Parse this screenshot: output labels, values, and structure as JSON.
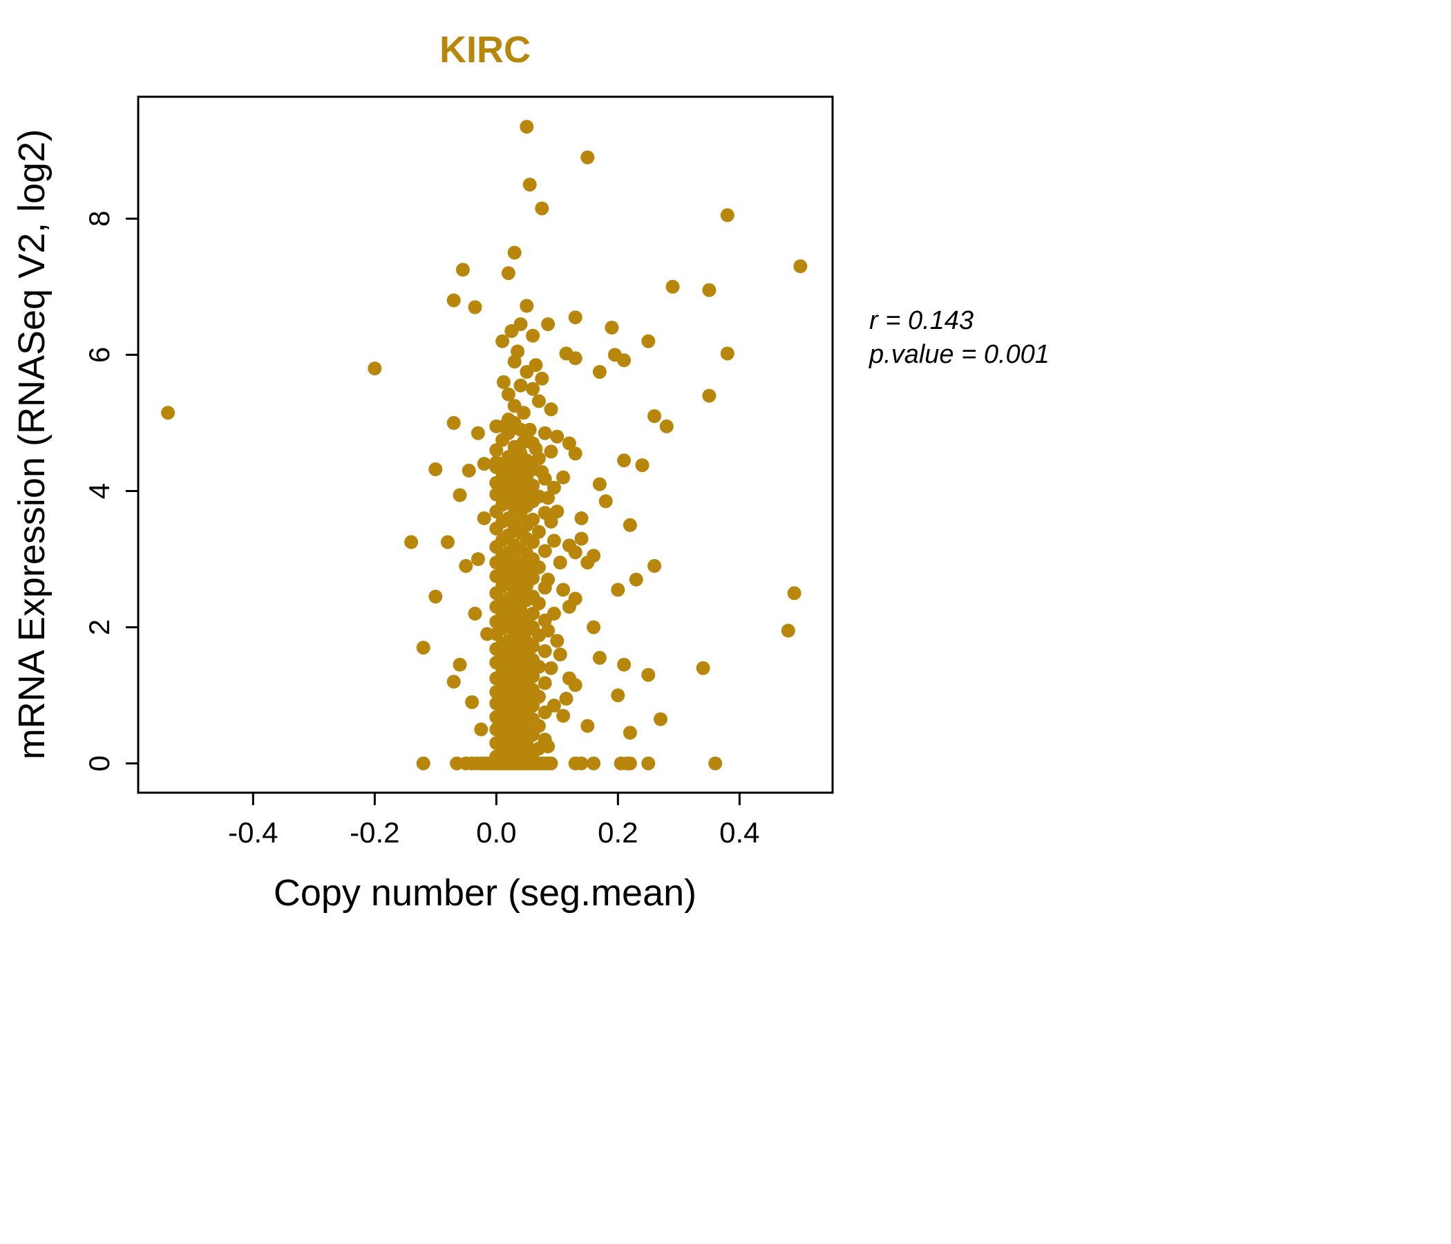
{
  "chart_data": {
    "type": "scatter",
    "title": "KIRC",
    "title_color": "#B8860B",
    "xlabel": "Copy number (seg.mean)",
    "ylabel": "mRNA Expression (RNASeq V2, log2)",
    "point_color": "#B8860B",
    "grid": false,
    "x_axis": {
      "range": [
        -0.589,
        0.553
      ],
      "ticks": [
        -0.4,
        -0.2,
        0,
        0.2,
        0.4
      ],
      "tick_labels": [
        "-0.4",
        "-0.2",
        "0.0",
        "0.2",
        "0.4"
      ]
    },
    "y_axis": {
      "range": [
        -0.43,
        9.79
      ],
      "ticks": [
        0,
        2,
        4,
        6,
        8
      ],
      "tick_labels": [
        "0",
        "2",
        "4",
        "6",
        "8"
      ]
    },
    "annotation": {
      "line1": "r = 0.143",
      "line2": "p.value = 0.001"
    },
    "points": [
      [
        0.05,
        9.35
      ],
      [
        0.15,
        8.9
      ],
      [
        0.055,
        8.5
      ],
      [
        0.075,
        8.15
      ],
      [
        0.38,
        8.05
      ],
      [
        0.03,
        7.5
      ],
      [
        0.5,
        7.3
      ],
      [
        -0.055,
        7.25
      ],
      [
        0.02,
        7.2
      ],
      [
        0.29,
        7.0
      ],
      [
        0.35,
        6.95
      ],
      [
        -0.07,
        6.8
      ],
      [
        -0.035,
        6.7
      ],
      [
        0.05,
        6.72
      ],
      [
        0.085,
        6.45
      ],
      [
        0.13,
        6.55
      ],
      [
        0.19,
        6.4
      ],
      [
        0.01,
        6.2
      ],
      [
        0.25,
        6.2
      ],
      [
        0.035,
        6.05
      ],
      [
        0.115,
        6.02
      ],
      [
        0.13,
        5.95
      ],
      [
        0.195,
        6.0
      ],
      [
        0.21,
        5.92
      ],
      [
        0.38,
        6.02
      ],
      [
        0.03,
        5.9
      ],
      [
        -0.2,
        5.8
      ],
      [
        0.17,
        5.75
      ],
      [
        0.012,
        5.6
      ],
      [
        0.04,
        5.55
      ],
      [
        0.06,
        5.5
      ],
      [
        0.02,
        5.42
      ],
      [
        0.35,
        5.4
      ],
      [
        0.07,
        5.32
      ],
      [
        0.03,
        5.25
      ],
      [
        0.045,
        5.15
      ],
      [
        -0.54,
        5.15
      ],
      [
        0.02,
        5.05
      ],
      [
        0.26,
        5.1
      ],
      [
        -0.07,
        5.0
      ],
      [
        0.012,
        4.95
      ],
      [
        0.055,
        4.9
      ],
      [
        0.08,
        4.85
      ],
      [
        0.1,
        4.8
      ],
      [
        0.28,
        4.95
      ],
      [
        0.045,
        4.72
      ],
      [
        0.12,
        4.7
      ],
      [
        0.065,
        4.62
      ],
      [
        0.09,
        4.58
      ],
      [
        0.025,
        4.52
      ],
      [
        0.13,
        4.55
      ],
      [
        0.0,
        4.42
      ],
      [
        0.21,
        4.45
      ],
      [
        0.24,
        4.38
      ],
      [
        -0.02,
        4.4
      ],
      [
        -0.1,
        4.32
      ],
      [
        0.075,
        4.28
      ],
      [
        0.11,
        4.2
      ],
      [
        0.17,
        4.1
      ],
      [
        -0.06,
        3.94
      ],
      [
        0.085,
        3.9
      ],
      [
        0.18,
        3.85
      ],
      [
        0.1,
        3.7
      ],
      [
        0.14,
        3.6
      ],
      [
        0.22,
        3.5
      ],
      [
        -0.14,
        3.25
      ],
      [
        -0.08,
        3.25
      ],
      [
        0.095,
        3.27
      ],
      [
        0.12,
        3.2
      ],
      [
        0.13,
        3.1
      ],
      [
        0.105,
        2.95
      ],
      [
        0.15,
        2.95
      ],
      [
        0.23,
        2.7
      ],
      [
        0.26,
        2.9
      ],
      [
        0.085,
        2.7
      ],
      [
        0.11,
        2.55
      ],
      [
        0.49,
        2.5
      ],
      [
        -0.1,
        2.45
      ],
      [
        0.12,
        2.3
      ],
      [
        0.095,
        2.2
      ],
      [
        0.16,
        2.0
      ],
      [
        0.48,
        1.95
      ],
      [
        0.085,
        1.95
      ],
      [
        0.1,
        1.8
      ],
      [
        -0.12,
        1.7
      ],
      [
        0.17,
        1.55
      ],
      [
        0.21,
        1.45
      ],
      [
        0.09,
        1.4
      ],
      [
        0.34,
        1.4
      ],
      [
        0.25,
        1.3
      ],
      [
        0.12,
        1.25
      ],
      [
        -0.07,
        1.2
      ],
      [
        0.2,
        1.0
      ],
      [
        0.095,
        0.85
      ],
      [
        0.11,
        0.7
      ],
      [
        0.27,
        0.65
      ],
      [
        0.15,
        0.55
      ],
      [
        0.22,
        0.45
      ],
      [
        0.085,
        0.25
      ],
      [
        0.13,
        2.42
      ],
      [
        0.14,
        3.3
      ],
      [
        0.09,
        3.55
      ],
      [
        0.095,
        4.05
      ],
      [
        0.105,
        1.6
      ],
      [
        0.13,
        1.15
      ],
      [
        0.115,
        0.95
      ],
      [
        0.16,
        3.05
      ],
      [
        0.2,
        2.55
      ],
      [
        0.09,
        5.2
      ],
      [
        0.065,
        5.85
      ],
      [
        0.075,
        5.65
      ],
      [
        0.05,
        5.75
      ],
      [
        0.025,
        6.35
      ],
      [
        0.06,
        6.28
      ],
      [
        0.04,
        6.45
      ],
      [
        -0.03,
        4.85
      ],
      [
        -0.045,
        4.3
      ],
      [
        -0.02,
        3.6
      ],
      [
        -0.05,
        2.9
      ],
      [
        -0.035,
        2.2
      ],
      [
        -0.06,
        1.45
      ],
      [
        -0.04,
        0.9
      ],
      [
        -0.025,
        0.5
      ],
      [
        -0.015,
        1.9
      ],
      [
        -0.03,
        3.0
      ],
      [
        0.02,
        0.05
      ],
      [
        0.05,
        0.06
      ],
      [
        0.0,
        0.1
      ],
      [
        0.03,
        0.12
      ],
      [
        0.06,
        0.15
      ],
      [
        0.01,
        0.18
      ],
      [
        0.04,
        0.2
      ],
      [
        0.07,
        0.22
      ],
      [
        0.02,
        0.25
      ],
      [
        0.05,
        0.28
      ],
      [
        0.0,
        0.3
      ],
      [
        0.03,
        0.32
      ],
      [
        0.08,
        0.35
      ],
      [
        0.01,
        0.38
      ],
      [
        0.04,
        0.4
      ],
      [
        0.06,
        0.42
      ],
      [
        0.02,
        0.45
      ],
      [
        0.05,
        0.48
      ],
      [
        0.0,
        0.5
      ],
      [
        0.03,
        0.52
      ],
      [
        0.07,
        0.55
      ],
      [
        0.01,
        0.58
      ],
      [
        0.04,
        0.6
      ],
      [
        0.02,
        0.62
      ],
      [
        0.06,
        0.65
      ],
      [
        0.0,
        0.68
      ],
      [
        0.03,
        0.7
      ],
      [
        0.05,
        0.72
      ],
      [
        0.08,
        0.75
      ],
      [
        0.01,
        0.78
      ],
      [
        0.04,
        0.8
      ],
      [
        0.02,
        0.82
      ],
      [
        0.06,
        0.85
      ],
      [
        0.0,
        0.88
      ],
      [
        0.03,
        0.9
      ],
      [
        0.05,
        0.92
      ],
      [
        0.01,
        0.95
      ],
      [
        0.07,
        0.98
      ],
      [
        0.02,
        1.0
      ],
      [
        0.04,
        1.02
      ],
      [
        0.0,
        1.05
      ],
      [
        0.06,
        1.08
      ],
      [
        0.03,
        1.1
      ],
      [
        0.01,
        1.12
      ],
      [
        0.05,
        1.15
      ],
      [
        0.08,
        1.18
      ],
      [
        0.02,
        1.2
      ],
      [
        0.04,
        1.22
      ],
      [
        0.0,
        1.25
      ],
      [
        0.06,
        1.28
      ],
      [
        0.03,
        1.3
      ],
      [
        0.01,
        1.35
      ],
      [
        0.05,
        1.38
      ],
      [
        0.02,
        1.4
      ],
      [
        0.07,
        1.42
      ],
      [
        0.04,
        1.45
      ],
      [
        0.0,
        1.48
      ],
      [
        0.03,
        1.5
      ],
      [
        0.06,
        1.52
      ],
      [
        0.01,
        1.55
      ],
      [
        0.05,
        1.58
      ],
      [
        0.02,
        1.6
      ],
      [
        0.04,
        1.62
      ],
      [
        0.08,
        1.65
      ],
      [
        0.0,
        1.68
      ],
      [
        0.03,
        1.7
      ],
      [
        0.06,
        1.72
      ],
      [
        0.01,
        1.75
      ],
      [
        0.05,
        1.78
      ],
      [
        0.02,
        1.8
      ],
      [
        0.04,
        1.85
      ],
      [
        0.07,
        1.88
      ],
      [
        0.0,
        1.9
      ],
      [
        0.03,
        1.92
      ],
      [
        0.05,
        1.95
      ],
      [
        0.01,
        1.98
      ],
      [
        0.06,
        2.0
      ],
      [
        0.02,
        2.02
      ],
      [
        0.04,
        2.05
      ],
      [
        0.0,
        2.08
      ],
      [
        0.08,
        2.1
      ],
      [
        0.03,
        2.12
      ],
      [
        0.05,
        2.15
      ],
      [
        0.01,
        2.18
      ],
      [
        0.06,
        2.2
      ],
      [
        0.02,
        2.22
      ],
      [
        0.04,
        2.25
      ],
      [
        0.0,
        2.3
      ],
      [
        0.03,
        2.32
      ],
      [
        0.07,
        2.35
      ],
      [
        0.01,
        2.38
      ],
      [
        0.05,
        2.4
      ],
      [
        0.02,
        2.42
      ],
      [
        0.06,
        2.45
      ],
      [
        0.04,
        2.48
      ],
      [
        0.0,
        2.5
      ],
      [
        0.03,
        2.55
      ],
      [
        0.08,
        2.58
      ],
      [
        0.01,
        2.6
      ],
      [
        0.05,
        2.62
      ],
      [
        0.02,
        2.65
      ],
      [
        0.04,
        2.7
      ],
      [
        0.06,
        2.72
      ],
      [
        0.0,
        2.75
      ],
      [
        0.03,
        2.78
      ],
      [
        0.01,
        2.8
      ],
      [
        0.05,
        2.85
      ],
      [
        0.07,
        2.88
      ],
      [
        0.02,
        2.9
      ],
      [
        0.04,
        2.92
      ],
      [
        0.0,
        2.95
      ],
      [
        0.03,
        2.98
      ],
      [
        0.06,
        3.0
      ],
      [
        0.01,
        3.05
      ],
      [
        0.05,
        3.08
      ],
      [
        0.02,
        3.1
      ],
      [
        0.08,
        3.12
      ],
      [
        0.04,
        3.15
      ],
      [
        0.0,
        3.18
      ],
      [
        0.03,
        3.2
      ],
      [
        0.06,
        3.25
      ],
      [
        0.01,
        3.28
      ],
      [
        0.05,
        3.3
      ],
      [
        0.02,
        3.35
      ],
      [
        0.04,
        3.38
      ],
      [
        0.07,
        3.4
      ],
      [
        0.0,
        3.45
      ],
      [
        0.03,
        3.48
      ],
      [
        0.05,
        3.5
      ],
      [
        0.01,
        3.55
      ],
      [
        0.06,
        3.58
      ],
      [
        0.02,
        3.6
      ],
      [
        0.04,
        3.65
      ],
      [
        0.08,
        3.68
      ],
      [
        0.0,
        3.7
      ],
      [
        0.03,
        3.75
      ],
      [
        0.05,
        3.78
      ],
      [
        0.01,
        3.8
      ],
      [
        0.06,
        3.85
      ],
      [
        0.02,
        3.88
      ],
      [
        0.04,
        3.9
      ],
      [
        0.07,
        3.92
      ],
      [
        0.0,
        3.95
      ],
      [
        0.03,
        3.98
      ],
      [
        0.05,
        4.0
      ],
      [
        0.01,
        4.02
      ],
      [
        0.02,
        4.05
      ],
      [
        0.06,
        4.08
      ],
      [
        0.04,
        4.1
      ],
      [
        0.0,
        4.12
      ],
      [
        0.03,
        4.15
      ],
      [
        0.08,
        4.18
      ],
      [
        0.01,
        4.2
      ],
      [
        0.05,
        4.22
      ],
      [
        0.02,
        4.25
      ],
      [
        0.04,
        4.3
      ],
      [
        0.06,
        4.32
      ],
      [
        0.0,
        4.35
      ],
      [
        0.03,
        4.38
      ],
      [
        0.01,
        4.4
      ],
      [
        0.05,
        4.45
      ],
      [
        0.07,
        4.48
      ],
      [
        0.02,
        4.5
      ],
      [
        0.04,
        4.55
      ],
      [
        0.0,
        4.6
      ],
      [
        0.03,
        4.65
      ],
      [
        0.06,
        4.7
      ],
      [
        0.01,
        4.75
      ],
      [
        0.05,
        4.8
      ],
      [
        0.02,
        4.85
      ],
      [
        0.04,
        4.9
      ],
      [
        0.0,
        4.95
      ],
      [
        0.03,
        5.0
      ],
      [
        -0.12,
        0
      ],
      [
        -0.065,
        0
      ],
      [
        -0.05,
        0
      ],
      [
        -0.04,
        0
      ],
      [
        -0.032,
        0
      ],
      [
        -0.025,
        0
      ],
      [
        -0.018,
        0
      ],
      [
        -0.012,
        0
      ],
      [
        -0.006,
        0
      ],
      [
        0.0,
        0
      ],
      [
        0.004,
        0
      ],
      [
        0.008,
        0
      ],
      [
        0.012,
        0
      ],
      [
        0.016,
        0
      ],
      [
        0.02,
        0
      ],
      [
        0.024,
        0
      ],
      [
        0.028,
        0
      ],
      [
        0.032,
        0
      ],
      [
        0.036,
        0
      ],
      [
        0.04,
        0
      ],
      [
        0.044,
        0
      ],
      [
        0.048,
        0
      ],
      [
        0.052,
        0
      ],
      [
        0.056,
        0
      ],
      [
        0.06,
        0
      ],
      [
        0.065,
        0
      ],
      [
        0.07,
        0
      ],
      [
        0.075,
        0
      ],
      [
        0.08,
        0
      ],
      [
        0.085,
        0
      ],
      [
        0.09,
        0
      ],
      [
        0.13,
        0
      ],
      [
        0.14,
        0
      ],
      [
        0.16,
        0
      ],
      [
        0.205,
        0
      ],
      [
        0.215,
        0
      ],
      [
        0.22,
        0
      ],
      [
        0.25,
        0
      ],
      [
        0.36,
        0
      ]
    ]
  }
}
